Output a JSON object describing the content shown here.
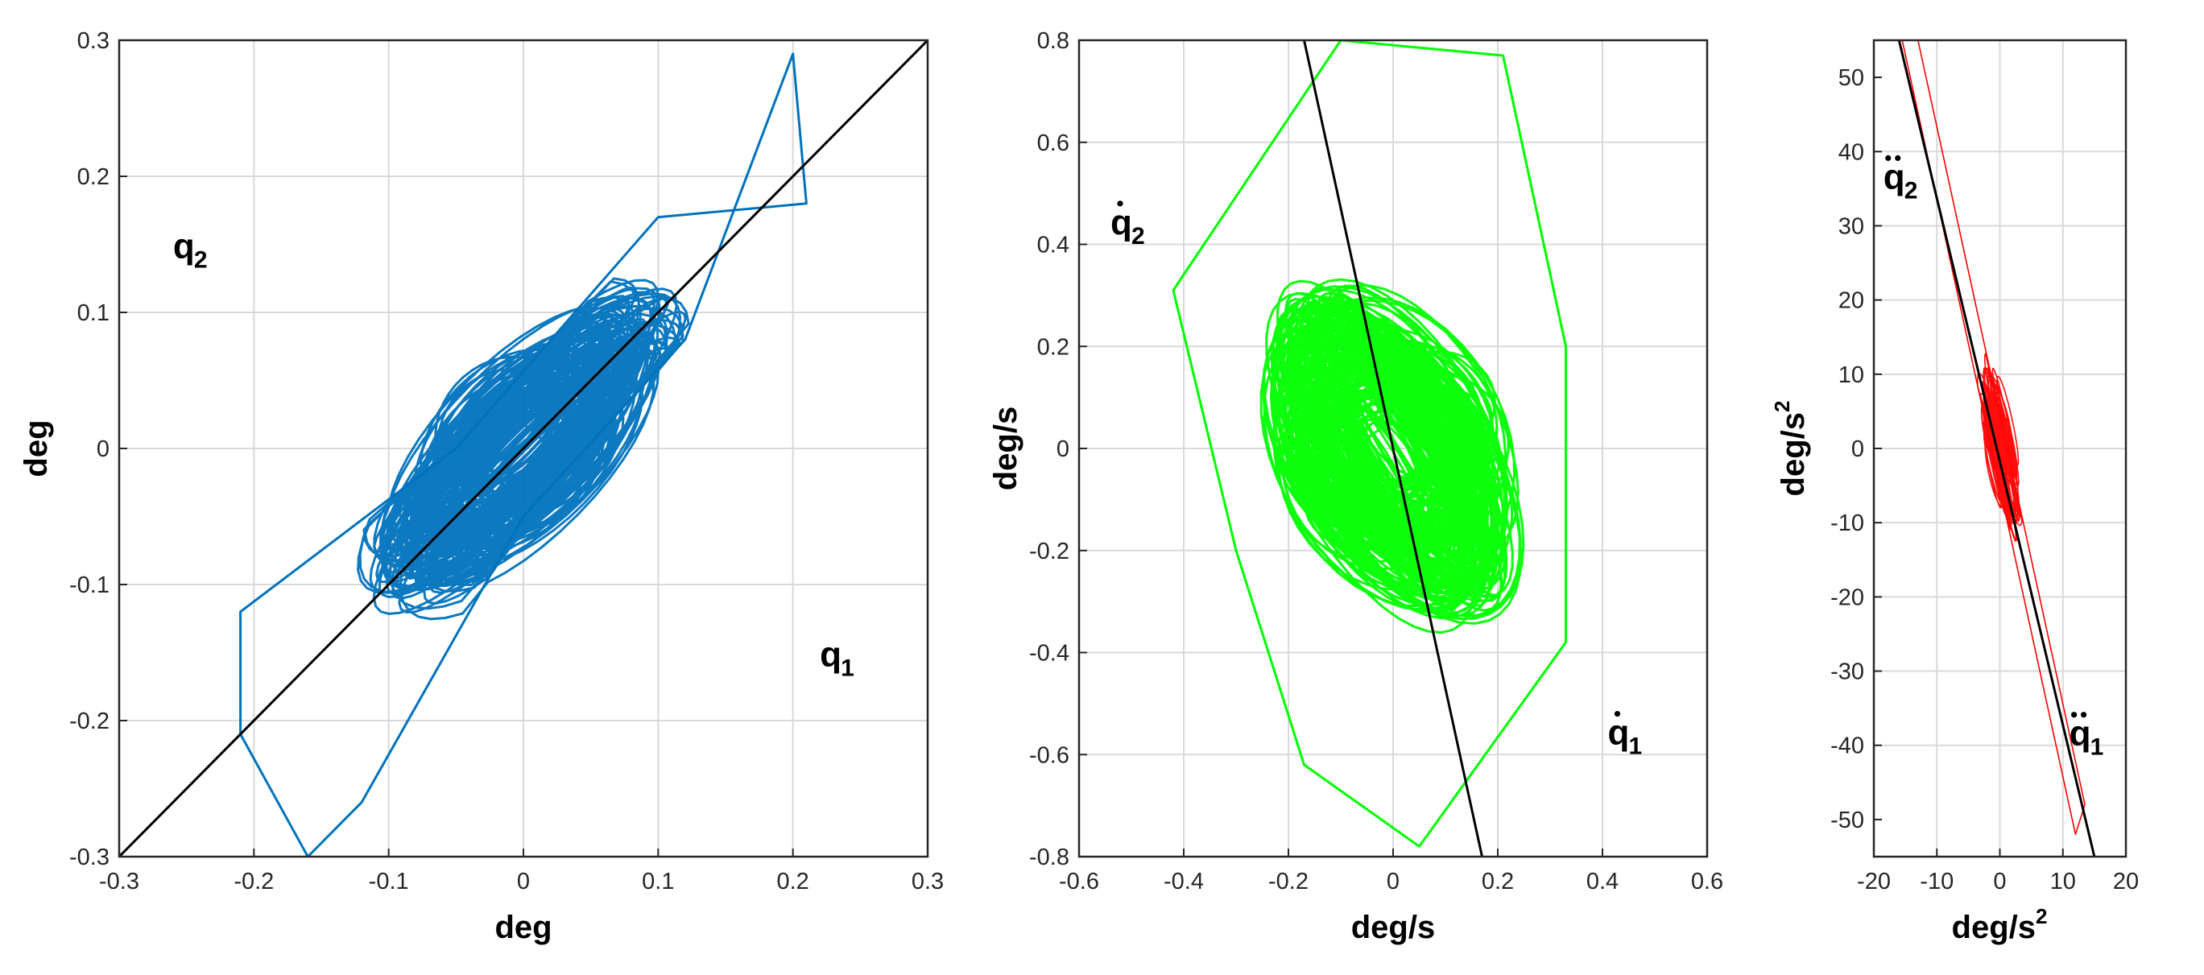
{
  "chart_data": [
    {
      "type": "line",
      "xlabel": "deg",
      "ylabel": "deg",
      "xlim": [
        -0.3,
        0.3
      ],
      "ylim": [
        -0.3,
        0.3
      ],
      "xticks": [
        "-0.3",
        "-0.2",
        "-0.1",
        "0",
        "0.1",
        "0.2",
        "0.3"
      ],
      "yticks": [
        "-0.3",
        "-0.2",
        "-0.1",
        "0",
        "0.1",
        "0.2",
        "0.3"
      ],
      "grid": true,
      "annotations": [
        {
          "text": "q",
          "sub": "2",
          "x": -0.26,
          "y": 0.14,
          "dot": 0
        },
        {
          "text": "q",
          "sub": "1",
          "x": 0.22,
          "y": -0.16,
          "dot": 0
        }
      ],
      "series": [
        {
          "color": "#0072BD",
          "kind": "trajectory",
          "orbits": 150,
          "spread_along": 0.13,
          "spread_across": 0.045,
          "tilt": 1.0,
          "envelope": [
            [
              -0.21,
              -0.21
            ],
            [
              -0.16,
              -0.3
            ],
            [
              -0.12,
              -0.26
            ],
            [
              0.0,
              -0.05
            ],
            [
              0.12,
              0.08
            ],
            [
              0.2,
              0.29
            ],
            [
              0.21,
              0.18
            ],
            [
              0.1,
              0.17
            ],
            [
              -0.05,
              0.0
            ],
            [
              -0.21,
              -0.12
            ]
          ]
        },
        {
          "color": "#000000",
          "kind": "fit",
          "points": [
            [
              -0.3,
              -0.3
            ],
            [
              0.3,
              0.3
            ]
          ]
        }
      ]
    },
    {
      "type": "line",
      "xlabel": "deg/s",
      "ylabel": "deg/s",
      "xlim": [
        -0.6,
        0.6
      ],
      "ylim": [
        -0.8,
        0.8
      ],
      "xticks": [
        "-0.6",
        "-0.4",
        "-0.2",
        "0",
        "0.2",
        "0.4",
        "0.6"
      ],
      "yticks": [
        "-0.8",
        "-0.6",
        "-0.4",
        "-0.2",
        "0",
        "0.2",
        "0.4",
        "0.6",
        "0.8"
      ],
      "grid": true,
      "annotations": [
        {
          "text": "q",
          "sub": "2",
          "x": -0.54,
          "y": 0.42,
          "dot": 1
        },
        {
          "text": "q",
          "sub": "1",
          "x": 0.41,
          "y": -0.58,
          "dot": 1
        }
      ],
      "series": [
        {
          "color": "#00FF00",
          "kind": "trajectory",
          "orbits": 200,
          "spread_along": 0.3,
          "spread_across": 0.3,
          "tilt": -0.5,
          "envelope": [
            [
              -0.42,
              0.31
            ],
            [
              -0.1,
              0.8
            ],
            [
              0.21,
              0.77
            ],
            [
              0.33,
              0.2
            ],
            [
              0.33,
              -0.38
            ],
            [
              0.05,
              -0.78
            ],
            [
              -0.17,
              -0.62
            ],
            [
              -0.3,
              -0.2
            ]
          ]
        },
        {
          "color": "#000000",
          "kind": "fit",
          "points": [
            [
              -0.17,
              0.8
            ],
            [
              0.17,
              -0.8
            ]
          ]
        }
      ]
    },
    {
      "type": "line",
      "xlabel": "deg/s",
      "xlabel_sup": "2",
      "ylabel": "deg/s",
      "ylabel_sup": "2",
      "xlim": [
        -20,
        20
      ],
      "ylim": [
        -55,
        55
      ],
      "xticks": [
        "-20",
        "-10",
        "0",
        "10",
        "20"
      ],
      "yticks": [
        "-50",
        "-40",
        "-30",
        "-20",
        "-10",
        "0",
        "10",
        "20",
        "30",
        "40",
        "50"
      ],
      "grid": true,
      "annotations": [
        {
          "text": "q",
          "sub": "2",
          "x": -18.5,
          "y": 35,
          "dot": 2
        },
        {
          "text": "q",
          "sub": "1",
          "x": 11,
          "y": -40,
          "dot": 2
        }
      ],
      "series": [
        {
          "color": "#FF0000",
          "kind": "trajectory",
          "orbits": 60,
          "spread_along": 9,
          "spread_across": 1.2,
          "tilt": -3.9,
          "envelope": [
            [
              -15.5,
              55
            ],
            [
              12,
              -52
            ],
            [
              13.5,
              -48
            ],
            [
              -13,
              55
            ]
          ]
        },
        {
          "color": "#000000",
          "kind": "fit",
          "points": [
            [
              -16,
              55
            ],
            [
              15,
              -55
            ]
          ]
        }
      ]
    }
  ]
}
